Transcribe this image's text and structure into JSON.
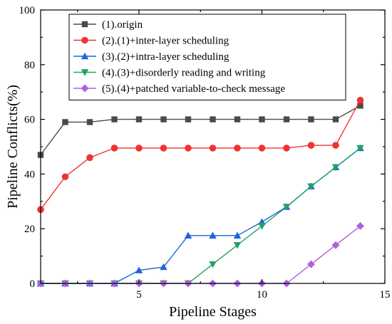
{
  "chart_data": {
    "type": "line",
    "title": "",
    "xlabel": "Pipeline Stages",
    "ylabel": "Pipeline Conflicts(%)",
    "xlim": [
      1,
      15
    ],
    "ylim": [
      0,
      100
    ],
    "xticks": [
      5,
      10,
      15
    ],
    "yticks": [
      0,
      20,
      40,
      60,
      80,
      100
    ],
    "grid": false,
    "legend_position": "top-left",
    "x": [
      1,
      2,
      3,
      4,
      5,
      6,
      7,
      8,
      9,
      10,
      11,
      12,
      13,
      14
    ],
    "series": [
      {
        "name": "(1).origin",
        "color": "#4a4a4a",
        "marker": "square",
        "values": [
          47,
          59,
          59,
          60,
          60,
          60,
          60,
          60,
          60,
          60,
          60,
          60,
          60,
          65
        ]
      },
      {
        "name": "(2).(1)+inter-layer scheduling",
        "color": "#ee3333",
        "marker": "circle",
        "values": [
          27,
          39,
          46,
          49.5,
          49.5,
          49.5,
          49.5,
          49.5,
          49.5,
          49.5,
          49.5,
          50.5,
          50.5,
          67
        ]
      },
      {
        "name": "(3).(2)+intra-layer scheduling",
        "color": "#1f64dc",
        "marker": "triangle-up",
        "values": [
          0,
          0,
          0,
          0,
          4.8,
          6,
          17.5,
          17.5,
          17.5,
          22.5,
          28,
          35.5,
          42.5,
          49.5
        ]
      },
      {
        "name": "(4).(3)+disorderly reading and writing",
        "color": "#21a366",
        "marker": "triangle-down",
        "values": [
          0,
          0,
          0,
          0,
          0,
          0,
          0,
          7,
          14,
          21,
          28,
          35.5,
          42.5,
          49.5
        ]
      },
      {
        "name": "(5).(4)+patched variable-to-check message",
        "color": "#b060e0",
        "marker": "diamond",
        "values": [
          0,
          0,
          0,
          0,
          0,
          0,
          0,
          0,
          0,
          0,
          0,
          7,
          14,
          21
        ]
      }
    ]
  }
}
